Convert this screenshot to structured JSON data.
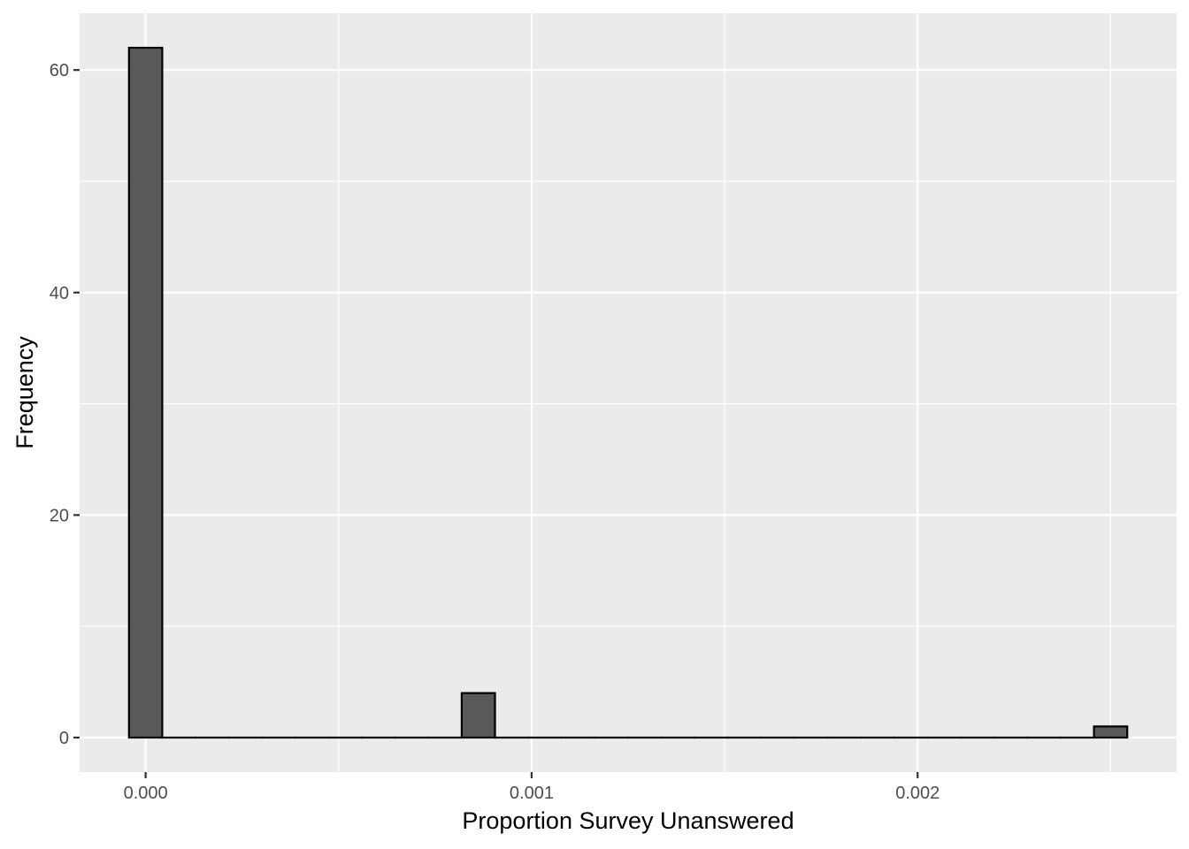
{
  "chart_data": {
    "type": "bar",
    "title": "",
    "xlabel": "Proportion Survey Unanswered",
    "ylabel": "Frequency",
    "xlim": [
      -0.000171,
      0.002671
    ],
    "ylim": [
      -3.1,
      65.1
    ],
    "x_ticks": [
      0.0,
      0.001,
      0.002
    ],
    "x_tick_labels": [
      "0.000",
      "0.001",
      "0.002"
    ],
    "y_ticks": [
      0,
      20,
      40,
      60
    ],
    "y_tick_labels": [
      "0",
      "20",
      "40",
      "60"
    ],
    "bin_width": 8.62e-05,
    "bins": [
      {
        "x": 0.0,
        "count": 62
      },
      {
        "x": 8.62e-05,
        "count": 0
      },
      {
        "x": 0.0001724,
        "count": 0
      },
      {
        "x": 0.0002586,
        "count": 0
      },
      {
        "x": 0.0003448,
        "count": 0
      },
      {
        "x": 0.000431,
        "count": 0
      },
      {
        "x": 0.0005172,
        "count": 0
      },
      {
        "x": 0.0006034,
        "count": 0
      },
      {
        "x": 0.0006896,
        "count": 0
      },
      {
        "x": 0.0007758,
        "count": 0
      },
      {
        "x": 0.000862,
        "count": 4
      },
      {
        "x": 0.0009482,
        "count": 0
      },
      {
        "x": 0.0010344,
        "count": 0
      },
      {
        "x": 0.0011206,
        "count": 0
      },
      {
        "x": 0.0012068,
        "count": 0
      },
      {
        "x": 0.001293,
        "count": 0
      },
      {
        "x": 0.0013792,
        "count": 0
      },
      {
        "x": 0.0014654,
        "count": 0
      },
      {
        "x": 0.0015516,
        "count": 0
      },
      {
        "x": 0.0016378,
        "count": 0
      },
      {
        "x": 0.001724,
        "count": 0
      },
      {
        "x": 0.0018102,
        "count": 0
      },
      {
        "x": 0.0018964,
        "count": 0
      },
      {
        "x": 0.0019826,
        "count": 0
      },
      {
        "x": 0.0020688,
        "count": 0
      },
      {
        "x": 0.002155,
        "count": 0
      },
      {
        "x": 0.0022412,
        "count": 0
      },
      {
        "x": 0.0023274,
        "count": 0
      },
      {
        "x": 0.0024136,
        "count": 0
      },
      {
        "x": 0.0025,
        "count": 1
      }
    ],
    "grid": true,
    "colors": {
      "panel_background": "#ebebeb",
      "grid_major": "#ffffff",
      "bar_fill": "#595959",
      "bar_outline": "#000000"
    }
  }
}
